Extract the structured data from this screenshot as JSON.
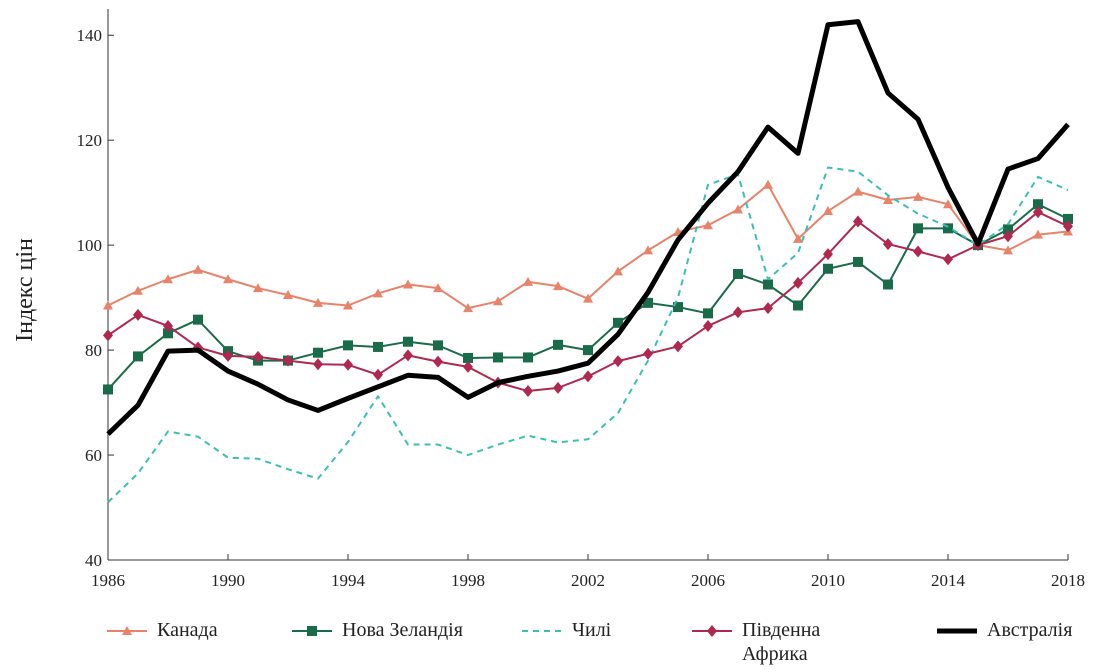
{
  "chart_data": {
    "type": "line",
    "ylabel": "Індекс цін",
    "x": [
      1986,
      1987,
      1988,
      1989,
      1990,
      1991,
      1992,
      1993,
      1994,
      1995,
      1996,
      1997,
      1998,
      1999,
      2000,
      2001,
      2002,
      2003,
      2004,
      2005,
      2006,
      2007,
      2008,
      2009,
      2010,
      2011,
      2012,
      2013,
      2014,
      2015,
      2016,
      2017,
      2018
    ],
    "xlim": [
      1986,
      2018
    ],
    "xticks": [
      1986,
      1990,
      1994,
      1998,
      2002,
      2006,
      2010,
      2014,
      2018
    ],
    "ylim": [
      40,
      145
    ],
    "yticks": [
      40,
      60,
      80,
      100,
      120,
      140
    ],
    "series": [
      {
        "name": "Канада",
        "color": "#e8836a",
        "marker": "triangle",
        "values": [
          88.5,
          91.3,
          93.5,
          95.3,
          93.5,
          91.8,
          90.5,
          89,
          88.5,
          90.8,
          92.5,
          91.8,
          88,
          89.3,
          93,
          92.2,
          89.8,
          95,
          99,
          102.5,
          103.8,
          106.8,
          111.5,
          101.2,
          106.5,
          110.2,
          108.6,
          109.2,
          107.8,
          100,
          99,
          102,
          102.6
        ]
      },
      {
        "name": "Нова Зеландія",
        "color": "#1a6b4a",
        "marker": "square",
        "values": [
          72.5,
          78.8,
          83.2,
          85.8,
          79.8,
          78,
          78,
          79.5,
          80.9,
          80.6,
          81.6,
          80.9,
          78.5,
          78.6,
          78.6,
          81,
          80,
          85.2,
          89,
          88.2,
          87,
          94.5,
          92.5,
          88.5,
          95.5,
          96.8,
          92.5,
          103.2,
          103.2,
          100,
          103,
          107.8,
          105
        ]
      },
      {
        "name": "Чилі",
        "color": "#3bbfb5",
        "marker": "none",
        "dash": true,
        "values": [
          51,
          56.5,
          64.5,
          63.5,
          59.5,
          59.3,
          57.3,
          55.5,
          62.5,
          71.2,
          62,
          62,
          60,
          62,
          63.7,
          62.4,
          63,
          68,
          78,
          90,
          111.5,
          113.5,
          93.5,
          98.5,
          114.8,
          114,
          109.5,
          106,
          103.5,
          100,
          104,
          113,
          110.5
        ]
      },
      {
        "name": "Південна Африка",
        "color": "#b0284f",
        "marker": "diamond",
        "values": [
          82.8,
          86.7,
          84.6,
          80.5,
          78.9,
          78.7,
          78,
          77.3,
          77.2,
          75.3,
          79,
          77.8,
          76.8,
          73.8,
          72.2,
          72.8,
          75,
          77.9,
          79.3,
          80.7,
          84.6,
          87.2,
          88,
          92.8,
          98.3,
          104.5,
          100.2,
          98.8,
          97.3,
          100,
          101.7,
          106.3,
          103.6
        ]
      },
      {
        "name": "Австралія",
        "color": "#000000",
        "marker": "none",
        "width": 5,
        "values": [
          64,
          69.5,
          79.8,
          80,
          76,
          73.5,
          70.5,
          68.5,
          70.8,
          73,
          75.2,
          74.8,
          71,
          73.8,
          75,
          76,
          77.5,
          83,
          91,
          101,
          108,
          114,
          122.5,
          117.5,
          142,
          142.6,
          129,
          124,
          111,
          100.2,
          114.5,
          116.5,
          123
        ]
      }
    ]
  }
}
